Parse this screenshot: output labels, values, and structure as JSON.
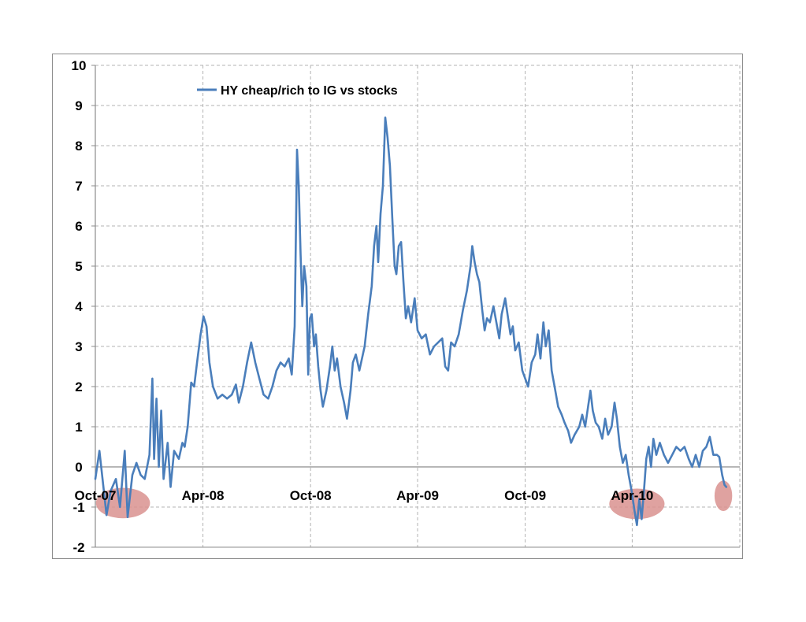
{
  "chart_data": {
    "type": "line",
    "title": "",
    "xlabel": "",
    "ylabel": "",
    "ylim": [
      -2,
      10
    ],
    "yticks": [
      10,
      9,
      8,
      7,
      6,
      5,
      4,
      3,
      2,
      1,
      0,
      -1,
      -2
    ],
    "xtick_labels": [
      "Oct-07",
      "Apr-08",
      "Oct-08",
      "Apr-09",
      "Oct-09",
      "Apr-10"
    ],
    "xlim": [
      "2007-10-01",
      "2010-10-01"
    ],
    "grid": true,
    "legend_position": "top-left",
    "line_color": "#4a7ebb",
    "highlight_color": "#d9928f",
    "series": [
      {
        "name": "HY cheap/rich to IG vs stocks",
        "points": [
          [
            "2007-10-01",
            -0.3
          ],
          [
            "2007-10-08",
            0.4
          ],
          [
            "2007-10-14",
            -0.4
          ],
          [
            "2007-10-20",
            -1.2
          ],
          [
            "2007-10-27",
            -0.6
          ],
          [
            "2007-11-05",
            -0.3
          ],
          [
            "2007-11-12",
            -1.0
          ],
          [
            "2007-11-20",
            0.4
          ],
          [
            "2007-11-25",
            -1.25
          ],
          [
            "2007-12-03",
            -0.2
          ],
          [
            "2007-12-10",
            0.1
          ],
          [
            "2007-12-17",
            -0.2
          ],
          [
            "2007-12-24",
            -0.3
          ],
          [
            "2008-01-01",
            0.3
          ],
          [
            "2008-01-06",
            2.2
          ],
          [
            "2008-01-09",
            0.2
          ],
          [
            "2008-01-13",
            1.7
          ],
          [
            "2008-01-17",
            0.0
          ],
          [
            "2008-01-21",
            1.4
          ],
          [
            "2008-01-25",
            -0.3
          ],
          [
            "2008-02-01",
            0.6
          ],
          [
            "2008-02-06",
            -0.5
          ],
          [
            "2008-02-12",
            0.4
          ],
          [
            "2008-02-20",
            0.2
          ],
          [
            "2008-02-26",
            0.6
          ],
          [
            "2008-03-01",
            0.5
          ],
          [
            "2008-03-06",
            1.0
          ],
          [
            "2008-03-12",
            2.1
          ],
          [
            "2008-03-17",
            2.0
          ],
          [
            "2008-03-22",
            2.6
          ],
          [
            "2008-03-28",
            3.3
          ],
          [
            "2008-04-02",
            3.75
          ],
          [
            "2008-04-07",
            3.5
          ],
          [
            "2008-04-12",
            2.6
          ],
          [
            "2008-04-18",
            2.0
          ],
          [
            "2008-04-26",
            1.7
          ],
          [
            "2008-05-04",
            1.8
          ],
          [
            "2008-05-12",
            1.7
          ],
          [
            "2008-05-20",
            1.8
          ],
          [
            "2008-05-27",
            2.05
          ],
          [
            "2008-06-01",
            1.6
          ],
          [
            "2008-06-08",
            2.0
          ],
          [
            "2008-06-15",
            2.6
          ],
          [
            "2008-06-22",
            3.1
          ],
          [
            "2008-06-29",
            2.6
          ],
          [
            "2008-07-06",
            2.2
          ],
          [
            "2008-07-13",
            1.8
          ],
          [
            "2008-07-21",
            1.7
          ],
          [
            "2008-07-28",
            2.0
          ],
          [
            "2008-08-04",
            2.4
          ],
          [
            "2008-08-11",
            2.6
          ],
          [
            "2008-08-18",
            2.5
          ],
          [
            "2008-08-25",
            2.7
          ],
          [
            "2008-08-30",
            2.3
          ],
          [
            "2008-09-04",
            3.5
          ],
          [
            "2008-09-08",
            7.9
          ],
          [
            "2008-09-11",
            7.0
          ],
          [
            "2008-09-14",
            5.3
          ],
          [
            "2008-09-17",
            4.0
          ],
          [
            "2008-09-20",
            5.0
          ],
          [
            "2008-09-24",
            4.5
          ],
          [
            "2008-09-27",
            2.3
          ],
          [
            "2008-09-30",
            3.7
          ],
          [
            "2008-10-03",
            3.8
          ],
          [
            "2008-10-07",
            3.0
          ],
          [
            "2008-10-10",
            3.3
          ],
          [
            "2008-10-14",
            2.5
          ],
          [
            "2008-10-18",
            1.9
          ],
          [
            "2008-10-22",
            1.5
          ],
          [
            "2008-10-28",
            1.9
          ],
          [
            "2008-11-03",
            2.5
          ],
          [
            "2008-11-07",
            3.0
          ],
          [
            "2008-11-11",
            2.4
          ],
          [
            "2008-11-15",
            2.7
          ],
          [
            "2008-11-21",
            2.0
          ],
          [
            "2008-11-27",
            1.6
          ],
          [
            "2008-12-02",
            1.2
          ],
          [
            "2008-12-08",
            1.9
          ],
          [
            "2008-12-12",
            2.6
          ],
          [
            "2008-12-17",
            2.8
          ],
          [
            "2008-12-23",
            2.4
          ],
          [
            "2009-01-01",
            3.0
          ],
          [
            "2009-01-07",
            3.8
          ],
          [
            "2009-01-13",
            4.5
          ],
          [
            "2009-01-17",
            5.5
          ],
          [
            "2009-01-21",
            6.0
          ],
          [
            "2009-01-24",
            5.1
          ],
          [
            "2009-01-28",
            6.3
          ],
          [
            "2009-02-01",
            7.0
          ],
          [
            "2009-02-05",
            8.7
          ],
          [
            "2009-02-09",
            8.2
          ],
          [
            "2009-02-13",
            7.5
          ],
          [
            "2009-02-17",
            6.2
          ],
          [
            "2009-02-21",
            5.0
          ],
          [
            "2009-02-24",
            4.8
          ],
          [
            "2009-02-28",
            5.5
          ],
          [
            "2009-03-04",
            5.6
          ],
          [
            "2009-03-08",
            4.6
          ],
          [
            "2009-03-12",
            3.7
          ],
          [
            "2009-03-16",
            4.0
          ],
          [
            "2009-03-21",
            3.6
          ],
          [
            "2009-03-27",
            4.2
          ],
          [
            "2009-04-01",
            3.4
          ],
          [
            "2009-04-08",
            3.2
          ],
          [
            "2009-04-15",
            3.3
          ],
          [
            "2009-04-22",
            2.8
          ],
          [
            "2009-04-29",
            3.0
          ],
          [
            "2009-05-06",
            3.1
          ],
          [
            "2009-05-13",
            3.2
          ],
          [
            "2009-05-18",
            2.5
          ],
          [
            "2009-05-23",
            2.4
          ],
          [
            "2009-05-28",
            3.1
          ],
          [
            "2009-06-03",
            3.0
          ],
          [
            "2009-06-10",
            3.3
          ],
          [
            "2009-06-17",
            3.9
          ],
          [
            "2009-06-24",
            4.4
          ],
          [
            "2009-06-30",
            5.0
          ],
          [
            "2009-07-03",
            5.5
          ],
          [
            "2009-07-07",
            5.1
          ],
          [
            "2009-07-11",
            4.8
          ],
          [
            "2009-07-15",
            4.6
          ],
          [
            "2009-07-20",
            3.9
          ],
          [
            "2009-07-24",
            3.4
          ],
          [
            "2009-07-28",
            3.7
          ],
          [
            "2009-08-02",
            3.6
          ],
          [
            "2009-08-08",
            4.0
          ],
          [
            "2009-08-13",
            3.6
          ],
          [
            "2009-08-18",
            3.2
          ],
          [
            "2009-08-22",
            3.8
          ],
          [
            "2009-08-28",
            4.2
          ],
          [
            "2009-09-02",
            3.7
          ],
          [
            "2009-09-06",
            3.3
          ],
          [
            "2009-09-10",
            3.5
          ],
          [
            "2009-09-14",
            2.9
          ],
          [
            "2009-09-20",
            3.1
          ],
          [
            "2009-09-26",
            2.4
          ],
          [
            "2009-10-01",
            2.2
          ],
          [
            "2009-10-06",
            2.0
          ],
          [
            "2009-10-12",
            2.6
          ],
          [
            "2009-10-18",
            2.8
          ],
          [
            "2009-10-22",
            3.3
          ],
          [
            "2009-10-27",
            2.7
          ],
          [
            "2009-11-01",
            3.6
          ],
          [
            "2009-11-05",
            3.0
          ],
          [
            "2009-11-10",
            3.4
          ],
          [
            "2009-11-15",
            2.4
          ],
          [
            "2009-11-20",
            2.0
          ],
          [
            "2009-11-26",
            1.5
          ],
          [
            "2009-12-02",
            1.3
          ],
          [
            "2009-12-07",
            1.1
          ],
          [
            "2009-12-13",
            0.9
          ],
          [
            "2009-12-18",
            0.6
          ],
          [
            "2009-12-24",
            0.8
          ],
          [
            "2010-01-01",
            1.0
          ],
          [
            "2010-01-06",
            1.3
          ],
          [
            "2010-01-11",
            1.0
          ],
          [
            "2010-01-16",
            1.5
          ],
          [
            "2010-01-20",
            1.9
          ],
          [
            "2010-01-24",
            1.4
          ],
          [
            "2010-01-29",
            1.1
          ],
          [
            "2010-02-03",
            1.0
          ],
          [
            "2010-02-09",
            0.7
          ],
          [
            "2010-02-14",
            1.2
          ],
          [
            "2010-02-19",
            0.8
          ],
          [
            "2010-02-25",
            1.0
          ],
          [
            "2010-03-02",
            1.6
          ],
          [
            "2010-03-06",
            1.2
          ],
          [
            "2010-03-11",
            0.5
          ],
          [
            "2010-03-16",
            0.1
          ],
          [
            "2010-03-21",
            0.3
          ],
          [
            "2010-03-26",
            -0.2
          ],
          [
            "2010-03-31",
            -0.6
          ],
          [
            "2010-04-05",
            -1.1
          ],
          [
            "2010-04-09",
            -1.45
          ],
          [
            "2010-04-13",
            -0.8
          ],
          [
            "2010-04-17",
            -1.3
          ],
          [
            "2010-04-21",
            -0.6
          ],
          [
            "2010-04-25",
            0.2
          ],
          [
            "2010-04-29",
            0.5
          ],
          [
            "2010-05-03",
            0.0
          ],
          [
            "2010-05-07",
            0.7
          ],
          [
            "2010-05-12",
            0.3
          ],
          [
            "2010-05-18",
            0.6
          ],
          [
            "2010-05-25",
            0.3
          ],
          [
            "2010-06-01",
            0.1
          ],
          [
            "2010-06-08",
            0.3
          ],
          [
            "2010-06-15",
            0.5
          ],
          [
            "2010-06-22",
            0.4
          ],
          [
            "2010-06-29",
            0.5
          ],
          [
            "2010-07-06",
            0.2
          ],
          [
            "2010-07-12",
            0.0
          ],
          [
            "2010-07-18",
            0.3
          ],
          [
            "2010-07-24",
            0.0
          ],
          [
            "2010-07-30",
            0.4
          ],
          [
            "2010-08-05",
            0.5
          ],
          [
            "2010-08-11",
            0.75
          ],
          [
            "2010-08-17",
            0.3
          ],
          [
            "2010-08-23",
            0.3
          ],
          [
            "2010-08-27",
            0.25
          ],
          [
            "2010-09-01",
            -0.2
          ],
          [
            "2010-09-05",
            -0.45
          ],
          [
            "2010-09-08",
            -0.5
          ]
        ]
      }
    ],
    "highlights": [
      {
        "x_center": "2007-11-17",
        "y_center": -0.9,
        "x_half_width_days": 46,
        "y_half_height": 0.38
      },
      {
        "x_center": "2010-04-09",
        "y_center": -0.92,
        "x_half_width_days": 47,
        "y_half_height": 0.38
      },
      {
        "x_center": "2010-09-03",
        "y_center": -0.72,
        "x_half_width_days": 15,
        "y_half_height": 0.38
      }
    ]
  }
}
